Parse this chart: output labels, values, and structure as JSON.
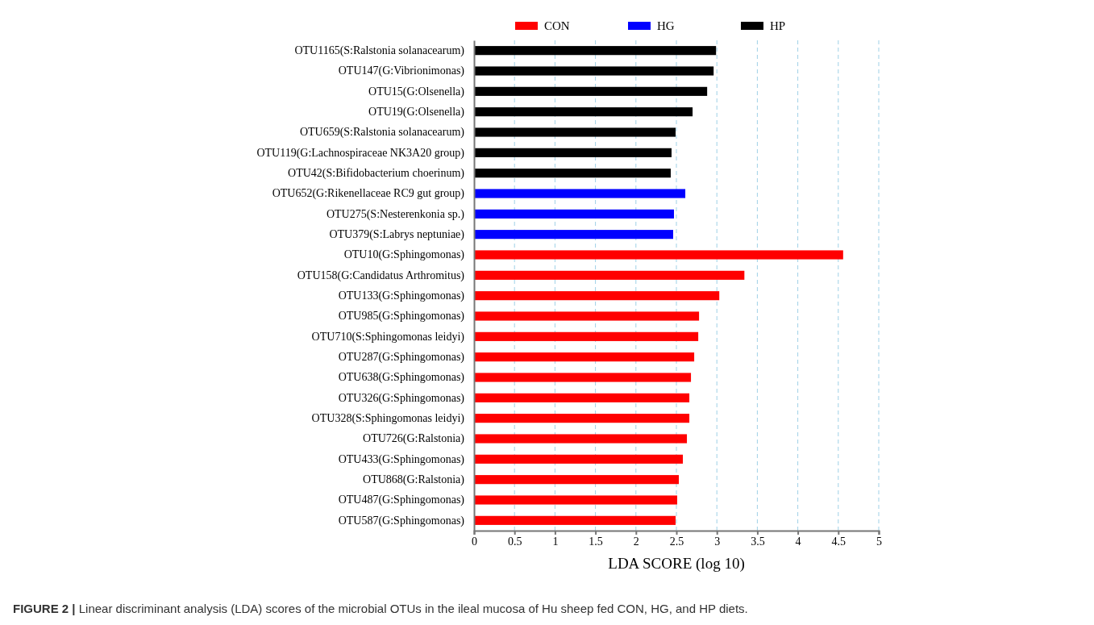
{
  "chart_data": {
    "type": "bar",
    "orientation": "horizontal",
    "xlabel": "LDA SCORE (log 10)",
    "categories": [
      "OTU1165(S:Ralstonia solanacearum)",
      "OTU147(G:Vibrionimonas)",
      "OTU15(G:Olsenella)",
      "OTU19(G:Olsenella)",
      "OTU659(S:Ralstonia solanacearum)",
      "OTU119(G:Lachnospiraceae NK3A20 group)",
      "OTU42(S:Bifidobacterium choerinum)",
      "OTU652(G:Rikenellaceae RC9 gut group)",
      "OTU275(S:Nesterenkonia sp.)",
      "OTU379(S:Labrys neptuniae)",
      "OTU10(G:Sphingomonas)",
      "OTU158(G:Candidatus Arthromitus)",
      "OTU133(G:Sphingomonas)",
      "OTU985(G:Sphingomonas)",
      "OTU710(S:Sphingomonas leidyi)",
      "OTU287(G:Sphingomonas)",
      "OTU638(G:Sphingomonas)",
      "OTU326(G:Sphingomonas)",
      "OTU328(S:Sphingomonas leidyi)",
      "OTU726(G:Ralstonia)",
      "OTU433(G:Sphingomonas)",
      "OTU868(G:Ralstonia)",
      "OTU487(G:Sphingomonas)",
      "OTU587(G:Sphingomonas)"
    ],
    "series": [
      {
        "name": "CON",
        "color": "#ff0000",
        "values": [
          null,
          null,
          null,
          null,
          null,
          null,
          null,
          null,
          null,
          null,
          4.56,
          3.34,
          3.03,
          2.78,
          2.77,
          2.72,
          2.68,
          2.66,
          2.66,
          2.63,
          2.58,
          2.53,
          2.51,
          2.49
        ]
      },
      {
        "name": "HG",
        "color": "#0000ff",
        "values": [
          null,
          null,
          null,
          null,
          null,
          null,
          null,
          2.61,
          2.47,
          2.46,
          null,
          null,
          null,
          null,
          null,
          null,
          null,
          null,
          null,
          null,
          null,
          null,
          null,
          null
        ]
      },
      {
        "name": "HP",
        "color": "#000000",
        "values": [
          2.99,
          2.96,
          2.88,
          2.7,
          2.49,
          2.44,
          2.43,
          null,
          null,
          null,
          null,
          null,
          null,
          null,
          null,
          null,
          null,
          null,
          null,
          null,
          null,
          null,
          null,
          null
        ]
      }
    ],
    "xlim": [
      0,
      5
    ],
    "xticks": [
      0,
      0.5,
      1,
      1.5,
      2,
      2.5,
      3,
      3.5,
      4,
      4.5,
      5
    ],
    "grid": "x",
    "legend": "top",
    "annotations": [
      "FIGURE 2 | Linear discriminant analysis (LDA) scores of the microbial OTUs in the ileal mucosa of Hu sheep fed CON, HG, and HP diets."
    ]
  }
}
